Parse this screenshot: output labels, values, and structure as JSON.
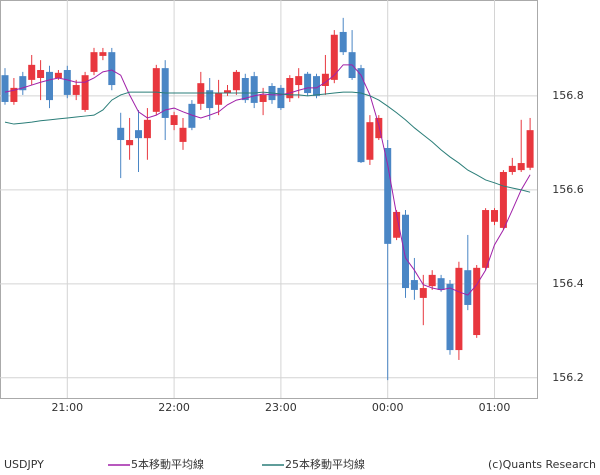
{
  "chart_data": {
    "type": "candlestick",
    "symbol": "USDJPY",
    "source": "(c)Quants Research",
    "categories": [
      null,
      null,
      null,
      null,
      null,
      null,
      null,
      "21:00",
      null,
      null,
      null,
      null,
      null,
      null,
      null,
      null,
      null,
      null,
      null,
      "22:00",
      null,
      null,
      null,
      null,
      null,
      null,
      null,
      null,
      null,
      null,
      null,
      "23:00",
      null,
      null,
      null,
      null,
      null,
      null,
      null,
      null,
      null,
      null,
      null,
      "00:00",
      null,
      null,
      null,
      null,
      null,
      null,
      null,
      null,
      null,
      null,
      null,
      "01:00",
      null,
      null,
      null,
      null
    ],
    "open": [
      156.844,
      156.787,
      156.842,
      156.834,
      156.838,
      156.851,
      156.838,
      156.855,
      156.802,
      156.77,
      156.851,
      156.885,
      156.893,
      156.732,
      156.695,
      156.727,
      156.71,
      156.766,
      156.859,
      156.738,
      156.702,
      156.783,
      156.783,
      156.812,
      156.781,
      156.806,
      156.812,
      156.838,
      156.842,
      156.787,
      156.821,
      156.817,
      156.795,
      156.823,
      156.847,
      156.842,
      156.821,
      156.834,
      156.936,
      156.893,
      156.859,
      156.664,
      156.71,
      156.689,
      156.498,
      156.547,
      156.408,
      156.37,
      156.395,
      156.412,
      156.4,
      156.259,
      156.429,
      156.291,
      156.434,
      156.532,
      156.519,
      156.638,
      156.642,
      156.647
    ],
    "high": [
      156.859,
      156.838,
      156.851,
      156.887,
      156.876,
      156.864,
      156.855,
      156.864,
      156.834,
      156.851,
      156.902,
      156.902,
      156.902,
      156.764,
      156.753,
      156.77,
      156.774,
      156.866,
      156.876,
      156.766,
      156.753,
      156.791,
      156.851,
      156.838,
      156.834,
      156.823,
      156.855,
      156.847,
      156.851,
      156.817,
      156.827,
      156.823,
      156.844,
      156.859,
      156.851,
      156.847,
      156.887,
      156.94,
      156.966,
      156.94,
      156.866,
      156.759,
      156.759,
      156.706,
      156.557,
      156.557,
      156.455,
      156.419,
      156.429,
      156.419,
      156.408,
      156.447,
      156.504,
      156.44,
      156.561,
      156.561,
      156.642,
      156.668,
      156.749,
      156.753
    ],
    "low": [
      156.781,
      156.781,
      156.802,
      156.823,
      156.791,
      156.774,
      156.834,
      156.795,
      156.791,
      156.766,
      156.844,
      156.876,
      156.812,
      156.625,
      156.664,
      156.638,
      156.664,
      156.759,
      156.706,
      156.727,
      156.685,
      156.727,
      156.77,
      156.749,
      156.759,
      156.8,
      156.802,
      156.785,
      156.774,
      156.759,
      156.783,
      156.77,
      156.787,
      156.795,
      156.8,
      156.795,
      156.802,
      156.827,
      156.887,
      156.834,
      156.657,
      156.653,
      156.706,
      156.195,
      156.493,
      156.37,
      156.366,
      156.312,
      156.387,
      156.383,
      156.249,
      156.238,
      156.344,
      156.285,
      156.429,
      156.525,
      156.515,
      156.632,
      156.638,
      156.642
    ],
    "close": [
      156.787,
      156.817,
      156.812,
      156.866,
      156.855,
      156.791,
      156.849,
      156.802,
      156.823,
      156.844,
      156.893,
      156.893,
      156.823,
      156.706,
      156.706,
      156.71,
      156.749,
      156.859,
      156.753,
      156.759,
      156.732,
      156.732,
      156.827,
      156.774,
      156.806,
      156.812,
      156.851,
      156.791,
      156.785,
      156.802,
      156.791,
      156.774,
      156.838,
      156.842,
      156.806,
      156.8,
      156.847,
      156.93,
      156.893,
      156.838,
      156.659,
      156.744,
      156.753,
      156.485,
      156.553,
      156.391,
      156.387,
      156.391,
      156.419,
      156.387,
      156.259,
      156.434,
      156.355,
      156.434,
      156.557,
      156.557,
      156.638,
      156.651,
      156.657,
      156.727
    ],
    "up_color": "#e8373e",
    "down_color": "#4a86c5",
    "overlays": [
      {
        "name": "5本移動平均線",
        "color": "#a020a8",
        "values": [
          156.808,
          156.812,
          156.817,
          156.823,
          156.829,
          156.834,
          156.838,
          156.834,
          156.829,
          156.829,
          156.838,
          156.851,
          156.855,
          156.844,
          156.802,
          156.766,
          156.753,
          156.759,
          156.77,
          156.774,
          156.766,
          156.759,
          156.753,
          156.759,
          156.766,
          156.781,
          156.791,
          156.795,
          156.8,
          156.804,
          156.802,
          156.802,
          156.806,
          156.812,
          156.817,
          156.817,
          156.829,
          156.844,
          156.866,
          156.866,
          156.844,
          156.802,
          156.738,
          156.653,
          156.547,
          156.455,
          156.429,
          156.398,
          156.391,
          156.387,
          156.391,
          156.383,
          156.376,
          156.398,
          156.429,
          156.483,
          156.515,
          156.557,
          156.6,
          156.632
        ]
      },
      {
        "name": "25本移動平均線",
        "color": "#2a7d78",
        "values": [
          156.744,
          156.74,
          156.742,
          156.744,
          156.747,
          156.749,
          156.751,
          156.753,
          156.755,
          156.757,
          156.759,
          156.77,
          156.791,
          156.802,
          156.808,
          156.808,
          156.808,
          156.808,
          156.806,
          156.806,
          156.806,
          156.806,
          156.806,
          156.806,
          156.806,
          156.806,
          156.806,
          156.806,
          156.806,
          156.808,
          156.806,
          156.804,
          156.802,
          156.802,
          156.8,
          156.802,
          156.804,
          156.806,
          156.808,
          156.808,
          156.806,
          156.8,
          156.791,
          156.778,
          156.764,
          156.749,
          156.732,
          156.717,
          156.702,
          156.685,
          156.67,
          156.657,
          156.642,
          156.632,
          156.621,
          156.615,
          156.608,
          156.604,
          156.6,
          156.595
        ]
      }
    ],
    "ylim": [
      156.157,
      157.004
    ],
    "yticks": [
      156.2,
      156.4,
      156.6,
      156.8
    ],
    "grid": true
  }
}
